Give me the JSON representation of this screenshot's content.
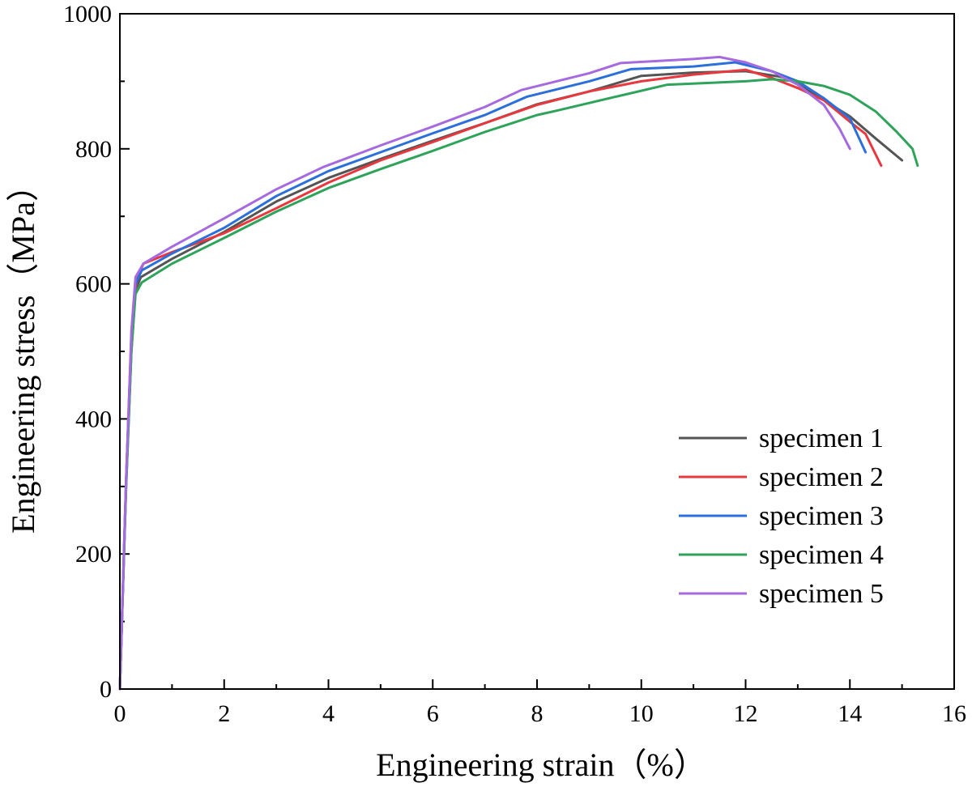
{
  "chart_data": {
    "type": "line",
    "title": "",
    "xlabel": "Engineering strain（%）",
    "ylabel": "Engineering stress（MPa）",
    "xlim": [
      0,
      16
    ],
    "ylim": [
      0,
      1000
    ],
    "xticks": [
      0,
      2,
      4,
      6,
      8,
      10,
      12,
      14,
      16
    ],
    "yticks": [
      0,
      200,
      400,
      600,
      800,
      1000
    ],
    "grid": false,
    "legend_position": "lower-right",
    "series": [
      {
        "name": "specimen 1",
        "color": "#555555",
        "points": [
          [
            0,
            0
          ],
          [
            0.12,
            300
          ],
          [
            0.22,
            500
          ],
          [
            0.3,
            590
          ],
          [
            0.4,
            610
          ],
          [
            1,
            637
          ],
          [
            2,
            677
          ],
          [
            3,
            722
          ],
          [
            4,
            757
          ],
          [
            5,
            785
          ],
          [
            6,
            812
          ],
          [
            7,
            838
          ],
          [
            8,
            866
          ],
          [
            9,
            885
          ],
          [
            10,
            908
          ],
          [
            11,
            913
          ],
          [
            12,
            915
          ],
          [
            12.8,
            905
          ],
          [
            13.5,
            872
          ],
          [
            14,
            848
          ],
          [
            14.5,
            815
          ],
          [
            15,
            783
          ]
        ]
      },
      {
        "name": "specimen 2",
        "color": "#e8383d",
        "points": [
          [
            0,
            0
          ],
          [
            0.12,
            310
          ],
          [
            0.22,
            520
          ],
          [
            0.32,
            605
          ],
          [
            0.45,
            630
          ],
          [
            1,
            647
          ],
          [
            2,
            675
          ],
          [
            3,
            712
          ],
          [
            4,
            750
          ],
          [
            5,
            783
          ],
          [
            6,
            810
          ],
          [
            7,
            838
          ],
          [
            8,
            865
          ],
          [
            9,
            885
          ],
          [
            10,
            900
          ],
          [
            11,
            910
          ],
          [
            12,
            917
          ],
          [
            12.5,
            905
          ],
          [
            13,
            890
          ],
          [
            13.5,
            872
          ],
          [
            14,
            840
          ],
          [
            14.3,
            822
          ],
          [
            14.6,
            775
          ]
        ]
      },
      {
        "name": "specimen 3",
        "color": "#2a6fdb",
        "points": [
          [
            0,
            0
          ],
          [
            0.12,
            310
          ],
          [
            0.22,
            520
          ],
          [
            0.3,
            600
          ],
          [
            0.42,
            620
          ],
          [
            1,
            645
          ],
          [
            2,
            683
          ],
          [
            3,
            730
          ],
          [
            4,
            767
          ],
          [
            5,
            795
          ],
          [
            6,
            823
          ],
          [
            7,
            850
          ],
          [
            7.8,
            877
          ],
          [
            9,
            900
          ],
          [
            9.8,
            918
          ],
          [
            11,
            922
          ],
          [
            11.8,
            928
          ],
          [
            12.5,
            915
          ],
          [
            13,
            900
          ],
          [
            13.5,
            875
          ],
          [
            14,
            845
          ],
          [
            14.3,
            795
          ]
        ]
      },
      {
        "name": "specimen 4",
        "color": "#2ea35a",
        "points": [
          [
            0,
            0
          ],
          [
            0.12,
            300
          ],
          [
            0.22,
            500
          ],
          [
            0.3,
            585
          ],
          [
            0.42,
            602
          ],
          [
            1,
            630
          ],
          [
            2,
            668
          ],
          [
            3,
            707
          ],
          [
            4,
            742
          ],
          [
            5,
            770
          ],
          [
            6,
            797
          ],
          [
            7,
            825
          ],
          [
            8,
            850
          ],
          [
            8.4,
            857
          ],
          [
            9.5,
            877
          ],
          [
            10.5,
            895
          ],
          [
            12,
            900
          ],
          [
            12.5,
            903
          ],
          [
            13,
            900
          ],
          [
            13.5,
            893
          ],
          [
            14,
            880
          ],
          [
            14.5,
            855
          ],
          [
            14.9,
            825
          ],
          [
            15.2,
            800
          ],
          [
            15.3,
            775
          ]
        ]
      },
      {
        "name": "specimen 5",
        "color": "#a56ae0",
        "points": [
          [
            0,
            0
          ],
          [
            0.12,
            310
          ],
          [
            0.22,
            530
          ],
          [
            0.3,
            610
          ],
          [
            0.45,
            630
          ],
          [
            1,
            655
          ],
          [
            2,
            697
          ],
          [
            3,
            740
          ],
          [
            3.9,
            773
          ],
          [
            5,
            805
          ],
          [
            6,
            833
          ],
          [
            7,
            862
          ],
          [
            7.7,
            887
          ],
          [
            9,
            912
          ],
          [
            9.6,
            927
          ],
          [
            11,
            933
          ],
          [
            11.5,
            936
          ],
          [
            12,
            928
          ],
          [
            12.5,
            915
          ],
          [
            13,
            895
          ],
          [
            13.5,
            865
          ],
          [
            13.8,
            830
          ],
          [
            14,
            800
          ]
        ]
      }
    ]
  }
}
